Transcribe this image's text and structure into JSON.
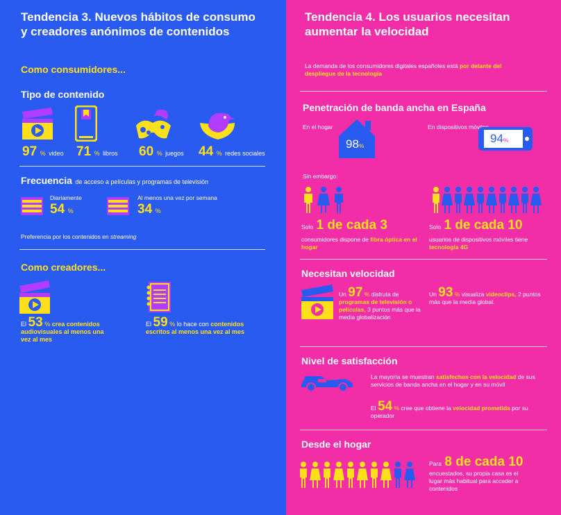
{
  "left": {
    "title_line1": "Tendencia 3. Nuevos hábitos de consumo",
    "title_line2": "y creadores anónimos de contenidos",
    "consumers_heading": "Como consumidores...",
    "content_type_heading": "Tipo de contenido",
    "content_stats": [
      {
        "value": "97",
        "pct": "%",
        "label": "video",
        "icon": "clapperboard-play-icon"
      },
      {
        "value": "71",
        "pct": "%",
        "label": "libros",
        "icon": "tablet-book-icon"
      },
      {
        "value": "60",
        "pct": "%",
        "label": "juegos",
        "icon": "gamepad-icon"
      },
      {
        "value": "44",
        "pct": "%",
        "label": "redes sociales",
        "icon": "bird-icon"
      }
    ],
    "frequency_heading_bold": "Frecuencia",
    "frequency_heading_rest": "de acceso a películas y programas de televisión",
    "frequency_stats": [
      {
        "label": "Diariamente",
        "value": "54",
        "pct": "%",
        "icon": "calendar-icon"
      },
      {
        "label": "Al menos una vez por semana",
        "value": "34",
        "pct": "%",
        "icon": "calendar-icon"
      }
    ],
    "streaming_pref": "Preferencia por los contenidos en",
    "streaming_word": "streaming",
    "creators_heading": "Como creadores...",
    "creators": [
      {
        "prefix": "El",
        "value": "53",
        "pct": "%",
        "highlight": "crea contenidos audiovisuales al menos una vez al mes",
        "rest": "",
        "icon": "clapperboard-play-icon"
      },
      {
        "prefix": "El",
        "value": "59",
        "pct": "%",
        "rest": "lo hace con",
        "highlight": "contenidos escritos al menos una vez al mes",
        "icon": "notebook-icon"
      }
    ]
  },
  "right": {
    "title_line1": "Tendencia 4. Los usuarios necesitan",
    "title_line2": "aumentar la velocidad",
    "demand_text": "La demanda de los consumidores digitales españoles está",
    "demand_highlight": "por delante del despliegue de la tecnología",
    "broadband_heading": "Penetración de banda ancha en España",
    "home_label": "En el hogar",
    "home_value": "98",
    "mobile_label": "En dispositivos móviles",
    "mobile_value": "94",
    "pct": "%",
    "however": "Sin embargo:",
    "fiber_prefix": "Solo",
    "fiber_big": "1 de cada 3",
    "fiber_text": "consumidores dispone de",
    "fiber_highlight": "fibra óptica en el hogar",
    "lte_prefix": "Solo",
    "lte_big": "1 de cada 10",
    "lte_text": "usuarios de dispositivos móviles tiene",
    "lte_highlight": "tecnología 4G",
    "speed_heading": "Necesitan velocidad",
    "speed1_prefix": "Un",
    "speed1_value": "97",
    "speed1_text": "disfruta de",
    "speed1_highlight": "programas de televisión o películas,",
    "speed1_rest": "3 puntos más que la media globalización",
    "speed2_prefix": "Un",
    "speed2_value": "93",
    "speed2_text": "visualiza",
    "speed2_highlight": "videoclips,",
    "speed2_rest": "2 puntos más que la media global.",
    "satisfaction_heading": "Nivel de satisfacción",
    "sat1_text": "La mayoría  se muestran",
    "sat1_highlight": "satisfechos con la velocidad",
    "sat1_rest": "de sus servicios de banda ancha en el hogar y en su móvil",
    "sat2_prefix": "El",
    "sat2_value": "54",
    "sat2_text": "cree que obtiene la",
    "sat2_highlight": "velocidad prometida",
    "sat2_rest": "por su operador",
    "home_heading": "Desde el hogar",
    "home_prefix": "Para",
    "home_big": "8 de cada 10",
    "home_text": "encuestados, su propia casa es el lugar más habitual para acceder a contenidos"
  },
  "colors": {
    "blue": "#2a5bf0",
    "pink": "#f12ea8",
    "yellow": "#ffe01a",
    "purple": "#b23cff"
  }
}
